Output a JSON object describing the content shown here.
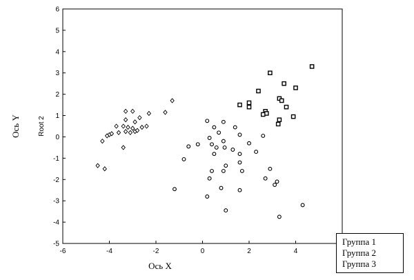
{
  "chart_data": {
    "type": "scatter",
    "xlabel_outer": "Ось X",
    "ylabel_outer": "Ось Y",
    "ylabel": "Root 2",
    "xlim": [
      -6,
      6
    ],
    "ylim": [
      -5,
      6
    ],
    "x_ticks": [
      "-6",
      "-4",
      "-2",
      "0",
      "2",
      "4"
    ],
    "y_ticks": [
      "6",
      "5",
      "4",
      "3",
      "2",
      "1",
      "0",
      "-1",
      "-2",
      "-3",
      "-4",
      "-5"
    ],
    "grid": false,
    "legend_position": "bottom-right",
    "series": [
      {
        "name": "Группа 1",
        "marker": "diamond",
        "points": [
          [
            -3.3,
            1.2
          ],
          [
            -3.0,
            1.2
          ],
          [
            -1.3,
            1.7
          ],
          [
            -1.6,
            1.15
          ],
          [
            -2.3,
            1.1
          ],
          [
            -2.7,
            0.9
          ],
          [
            -3.3,
            0.8
          ],
          [
            -2.9,
            0.7
          ],
          [
            -3.7,
            0.5
          ],
          [
            -3.4,
            0.5
          ],
          [
            -3.2,
            0.45
          ],
          [
            -3.0,
            0.4
          ],
          [
            -2.6,
            0.45
          ],
          [
            -2.4,
            0.5
          ],
          [
            -3.6,
            0.2
          ],
          [
            -3.3,
            0.25
          ],
          [
            -3.1,
            0.2
          ],
          [
            -2.9,
            0.25
          ],
          [
            -2.8,
            0.3
          ],
          [
            -4.0,
            0.1
          ],
          [
            -3.9,
            0.15
          ],
          [
            -4.1,
            0.05
          ],
          [
            -4.3,
            -0.2
          ],
          [
            -3.4,
            -0.5
          ],
          [
            -4.5,
            -1.35
          ],
          [
            -4.2,
            -1.5
          ]
        ]
      },
      {
        "name": "Группа 2",
        "marker": "circle",
        "points": [
          [
            0.2,
            0.75
          ],
          [
            0.9,
            0.7
          ],
          [
            0.5,
            0.45
          ],
          [
            1.4,
            0.45
          ],
          [
            0.7,
            0.2
          ],
          [
            1.6,
            0.1
          ],
          [
            0.3,
            -0.05
          ],
          [
            0.9,
            -0.2
          ],
          [
            2.0,
            -0.3
          ],
          [
            2.6,
            0.05
          ],
          [
            -0.6,
            -0.45
          ],
          [
            -0.2,
            -0.35
          ],
          [
            0.4,
            -0.35
          ],
          [
            0.6,
            -0.5
          ],
          [
            0.95,
            -0.5
          ],
          [
            1.3,
            -0.6
          ],
          [
            1.6,
            -0.8
          ],
          [
            2.3,
            -0.7
          ],
          [
            0.5,
            -0.8
          ],
          [
            -0.8,
            -1.05
          ],
          [
            1.0,
            -1.35
          ],
          [
            1.6,
            -1.2
          ],
          [
            0.4,
            -1.6
          ],
          [
            0.9,
            -1.6
          ],
          [
            1.7,
            -1.6
          ],
          [
            2.9,
            -1.5
          ],
          [
            0.3,
            -1.95
          ],
          [
            2.7,
            -1.95
          ],
          [
            3.2,
            -2.1
          ],
          [
            0.8,
            -2.4
          ],
          [
            3.1,
            -2.25
          ],
          [
            -1.2,
            -2.45
          ],
          [
            1.6,
            -2.5
          ],
          [
            0.2,
            -2.8
          ],
          [
            4.3,
            -3.2
          ],
          [
            1.0,
            -3.45
          ],
          [
            3.3,
            -3.75
          ]
        ]
      },
      {
        "name": "Группа 3",
        "marker": "square",
        "points": [
          [
            4.7,
            3.3
          ],
          [
            2.9,
            3.0
          ],
          [
            3.5,
            2.5
          ],
          [
            4.0,
            2.3
          ],
          [
            2.4,
            2.15
          ],
          [
            3.3,
            1.8
          ],
          [
            3.4,
            1.7
          ],
          [
            1.6,
            1.5
          ],
          [
            2.0,
            1.6
          ],
          [
            2.0,
            1.4
          ],
          [
            3.6,
            1.4
          ],
          [
            2.7,
            1.2
          ],
          [
            2.75,
            1.1
          ],
          [
            2.6,
            1.05
          ],
          [
            3.9,
            0.95
          ],
          [
            3.3,
            0.8
          ],
          [
            3.25,
            0.6
          ]
        ]
      }
    ]
  }
}
